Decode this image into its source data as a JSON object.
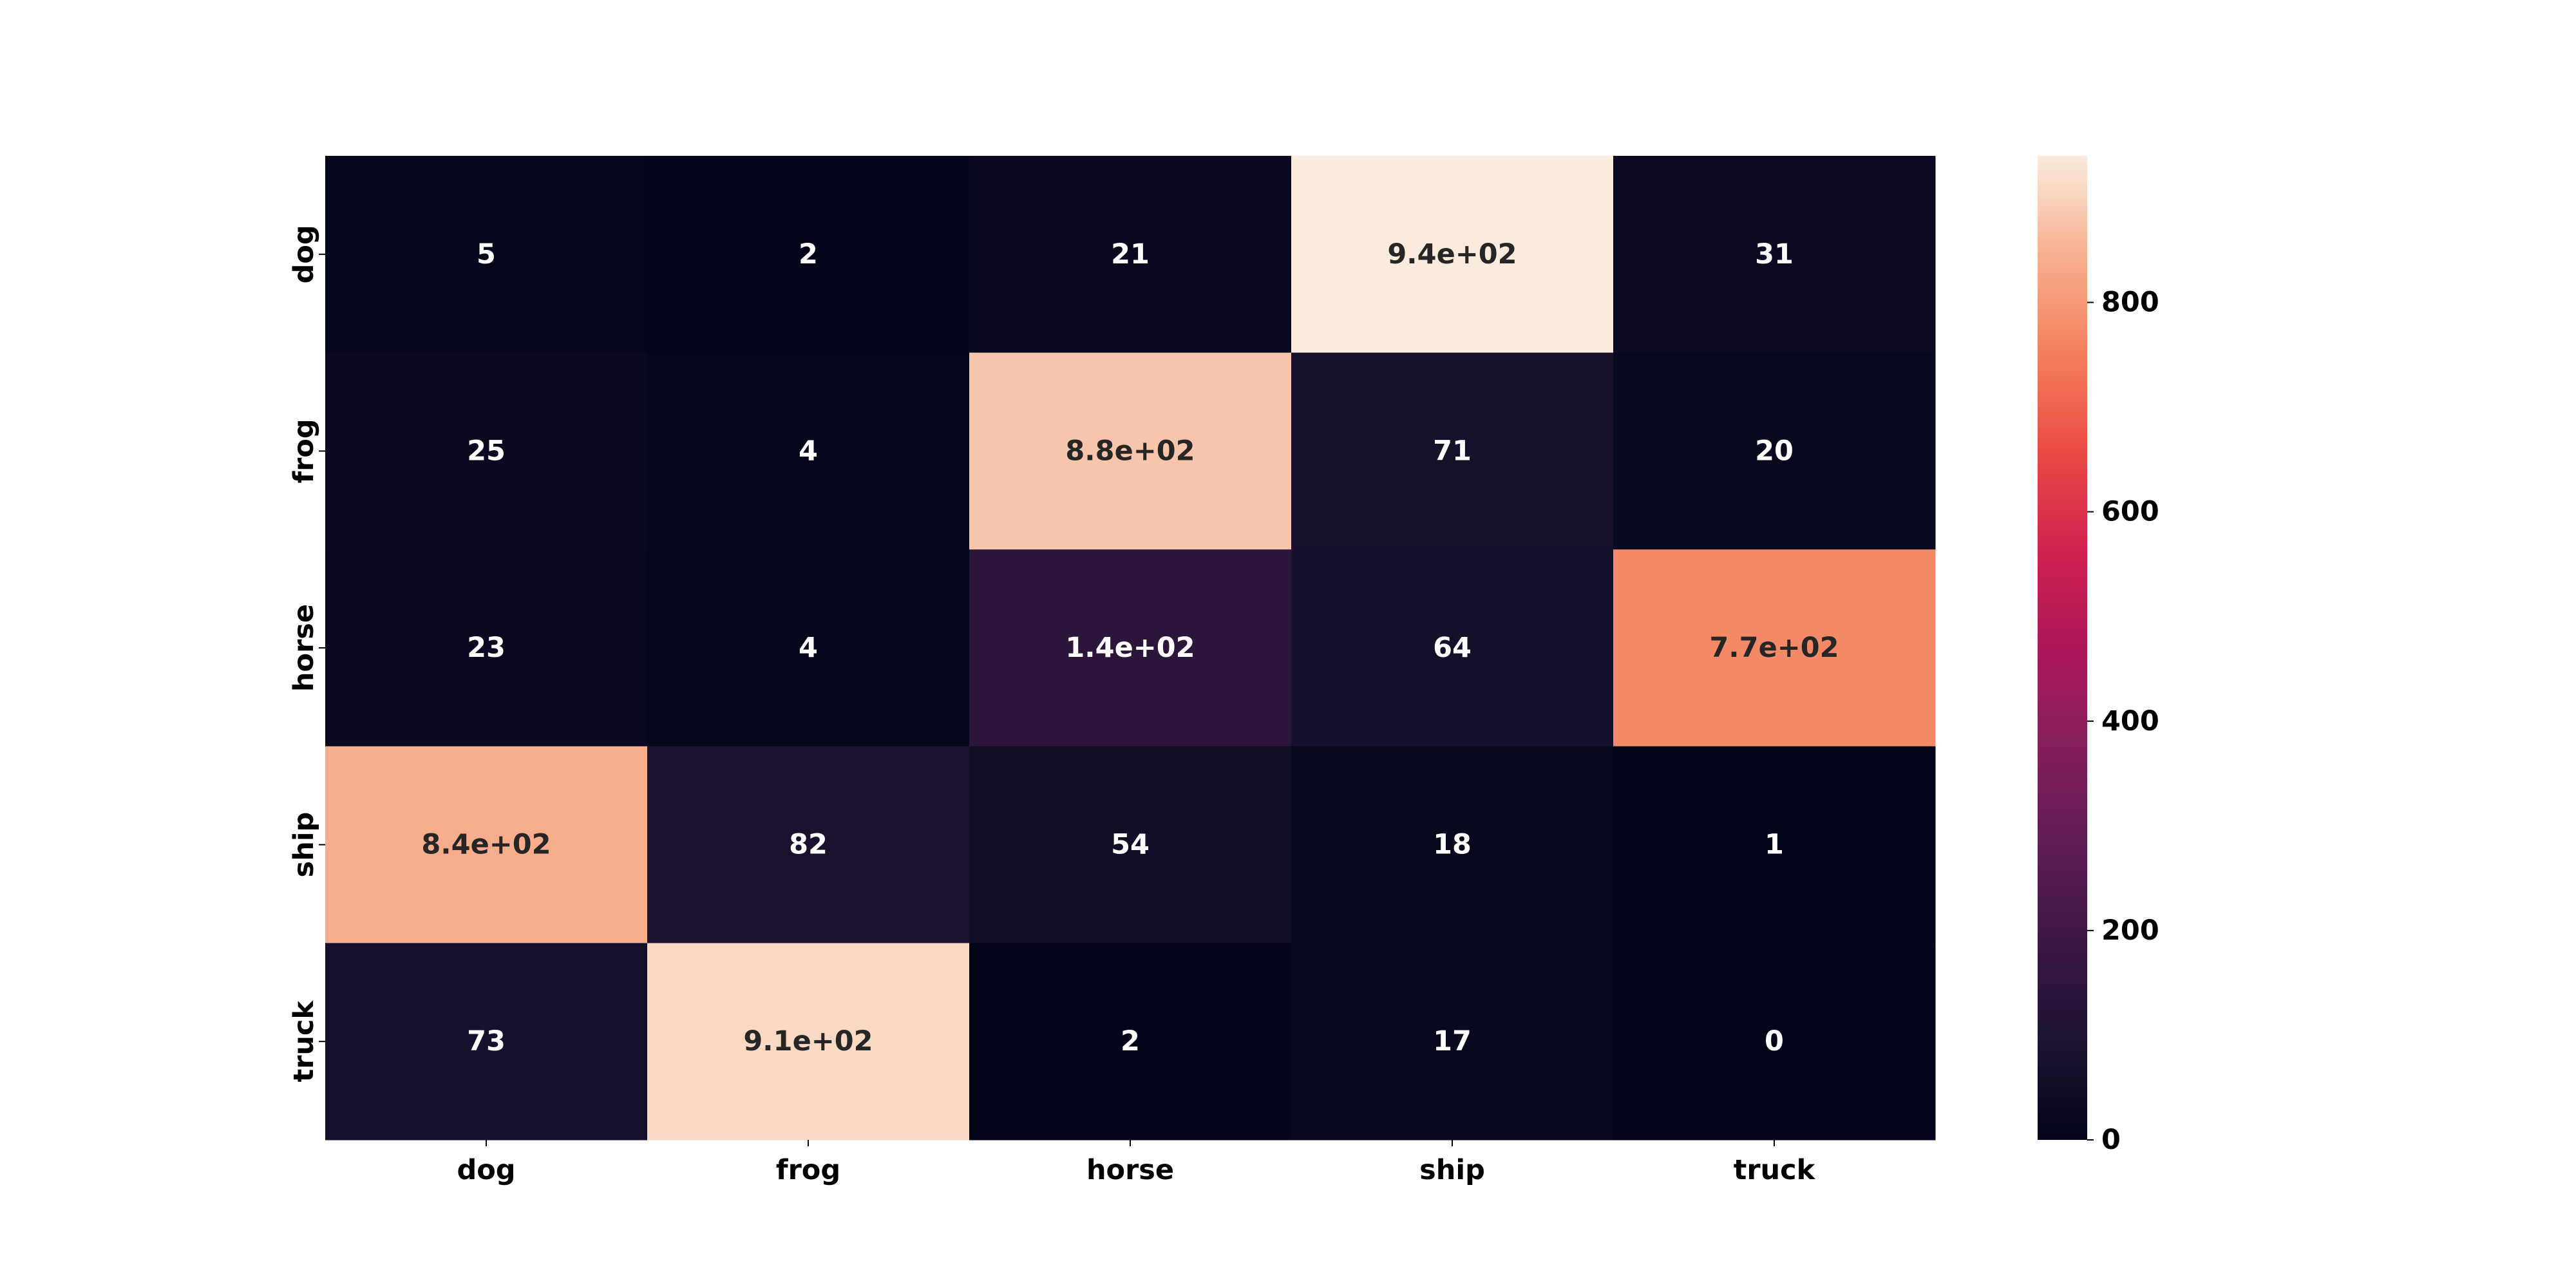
{
  "chart_data": {
    "type": "heatmap",
    "title": "",
    "xlabel": "",
    "ylabel": "",
    "x_categories": [
      "dog",
      "frog",
      "horse",
      "ship",
      "truck"
    ],
    "y_categories": [
      "dog",
      "frog",
      "horse",
      "ship",
      "truck"
    ],
    "values": [
      [
        5,
        2,
        21,
        940,
        31
      ],
      [
        25,
        4,
        880,
        71,
        20
      ],
      [
        23,
        4,
        140,
        64,
        770
      ],
      [
        840,
        82,
        54,
        18,
        1
      ],
      [
        73,
        910,
        2,
        17,
        0
      ]
    ],
    "cell_labels": [
      [
        "5",
        "2",
        "21",
        "9.4e+02",
        "31"
      ],
      [
        "25",
        "4",
        "8.8e+02",
        "71",
        "20"
      ],
      [
        "23",
        "4",
        "1.4e+02",
        "64",
        "7.7e+02"
      ],
      [
        "8.4e+02",
        "82",
        "54",
        "18",
        "1"
      ],
      [
        "73",
        "9.1e+02",
        "2",
        "17",
        "0"
      ]
    ],
    "colorbar": {
      "range": [
        0,
        940
      ],
      "ticks": [
        0,
        200,
        400,
        600,
        800
      ],
      "tick_labels": [
        "0",
        "200",
        "400",
        "600",
        "800"
      ],
      "colormap": "rocket"
    }
  }
}
